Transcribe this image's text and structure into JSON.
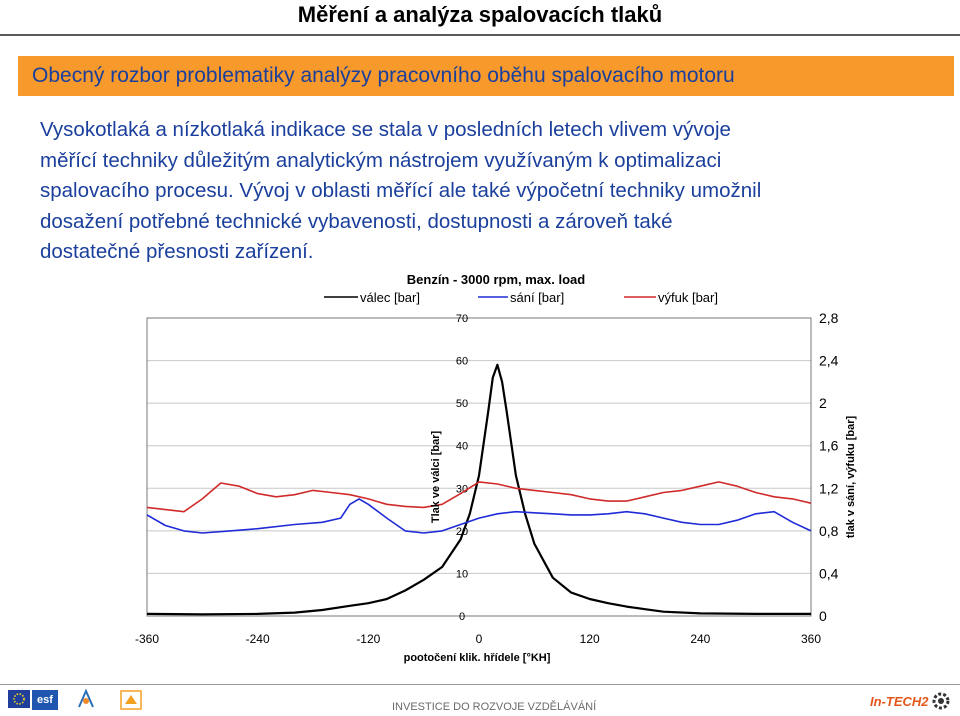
{
  "page": {
    "title": "Měření a analýza spalovacích tlaků",
    "banner": "Obecný rozbor problematiky analýzy pracovního oběhu spalovacího motoru",
    "paragraph_lines": [
      "Vysokotlaká a nízkotlaká indikace se stala v posledních letech vlivem vývoje",
      "měřící techniky důležitým analytickým nástrojem využívaným k optimalizaci",
      "spalovacího procesu. Vývoj v oblasti měřící ale také výpočetní techniky umožnil",
      "dosažení potřebné technické vybavenosti, dostupnosti a zároveň také",
      "dostatečné přesnosti zařízení."
    ]
  },
  "footer": {
    "text": "INVESTICE DO ROZVOJE VZDĚLÁVÁNÍ",
    "logo_tech_text": "In-TECH2",
    "logo_esf_text": "esf"
  },
  "colors": {
    "banner": "#f79a2b",
    "banner_text": "#1a3f9c",
    "paragraph": "#1a3f9c",
    "series_valec": "#000000",
    "series_sani": "#1f2bd6",
    "series_vyfuk": "#d02a2a"
  },
  "chart_data": {
    "type": "line",
    "title": "Benzín - 3000 rpm, max. load",
    "xlabel": "pootočení klik. hřídele [°KH]",
    "ylabel_left": "Tlak ve válci [bar]",
    "ylabel_right": "tlak v sání, výfuku [bar]",
    "xlim": [
      -360,
      360
    ],
    "ylim_left": [
      0,
      70
    ],
    "ylim_right": [
      0,
      2.8
    ],
    "x_ticks": [
      "-360",
      "-240",
      "-120",
      "0",
      "120",
      "240",
      "360"
    ],
    "y_ticks_left": [
      "0",
      "10",
      "20",
      "30",
      "40",
      "50",
      "60",
      "70"
    ],
    "y_ticks_right": [
      "0",
      "0,4",
      "0,8",
      "1,2",
      "1,6",
      "2",
      "2,4",
      "2,8"
    ],
    "grid": "horizontal",
    "legend_position": "top",
    "series": [
      {
        "name": "válec [bar]",
        "axis": "left",
        "x": [
          -360,
          -300,
          -240,
          -200,
          -170,
          -140,
          -120,
          -100,
          -80,
          -60,
          -40,
          -20,
          -10,
          0,
          10,
          15,
          20,
          25,
          30,
          40,
          50,
          60,
          80,
          100,
          120,
          140,
          160,
          180,
          200,
          240,
          300,
          360
        ],
        "y": [
          0.5,
          0.4,
          0.5,
          0.8,
          1.4,
          2.4,
          3.0,
          4.0,
          6.0,
          8.5,
          11.5,
          18.0,
          24.0,
          33.0,
          48.0,
          56.0,
          59.0,
          55.0,
          48.0,
          33.0,
          24.0,
          17.0,
          9.0,
          5.5,
          4.0,
          3.0,
          2.2,
          1.6,
          1.0,
          0.6,
          0.5,
          0.5
        ]
      },
      {
        "name": "sání [bar]",
        "axis": "right",
        "x": [
          -360,
          -340,
          -320,
          -300,
          -270,
          -240,
          -200,
          -170,
          -150,
          -140,
          -130,
          -120,
          -100,
          -80,
          -60,
          -40,
          -20,
          0,
          20,
          40,
          60,
          80,
          100,
          120,
          140,
          160,
          180,
          200,
          220,
          240,
          260,
          280,
          300,
          320,
          340,
          360
        ],
        "y": [
          0.95,
          0.85,
          0.8,
          0.78,
          0.8,
          0.82,
          0.86,
          0.88,
          0.92,
          1.05,
          1.1,
          1.05,
          0.92,
          0.8,
          0.78,
          0.8,
          0.86,
          0.92,
          0.96,
          0.98,
          0.97,
          0.96,
          0.95,
          0.95,
          0.96,
          0.98,
          0.96,
          0.92,
          0.88,
          0.86,
          0.86,
          0.9,
          0.96,
          0.98,
          0.88,
          0.8
        ]
      },
      {
        "name": "výfuk [bar]",
        "axis": "right",
        "x": [
          -360,
          -340,
          -320,
          -300,
          -280,
          -260,
          -240,
          -220,
          -200,
          -180,
          -160,
          -140,
          -120,
          -100,
          -80,
          -60,
          -40,
          -20,
          0,
          20,
          40,
          60,
          80,
          100,
          120,
          140,
          160,
          180,
          200,
          220,
          240,
          260,
          280,
          300,
          320,
          340,
          360
        ],
        "y": [
          1.02,
          1.0,
          0.98,
          1.1,
          1.25,
          1.22,
          1.15,
          1.12,
          1.14,
          1.18,
          1.16,
          1.14,
          1.1,
          1.05,
          1.03,
          1.02,
          1.05,
          1.15,
          1.26,
          1.24,
          1.2,
          1.18,
          1.16,
          1.14,
          1.1,
          1.08,
          1.08,
          1.12,
          1.16,
          1.18,
          1.22,
          1.26,
          1.22,
          1.16,
          1.12,
          1.1,
          1.06
        ]
      }
    ]
  }
}
